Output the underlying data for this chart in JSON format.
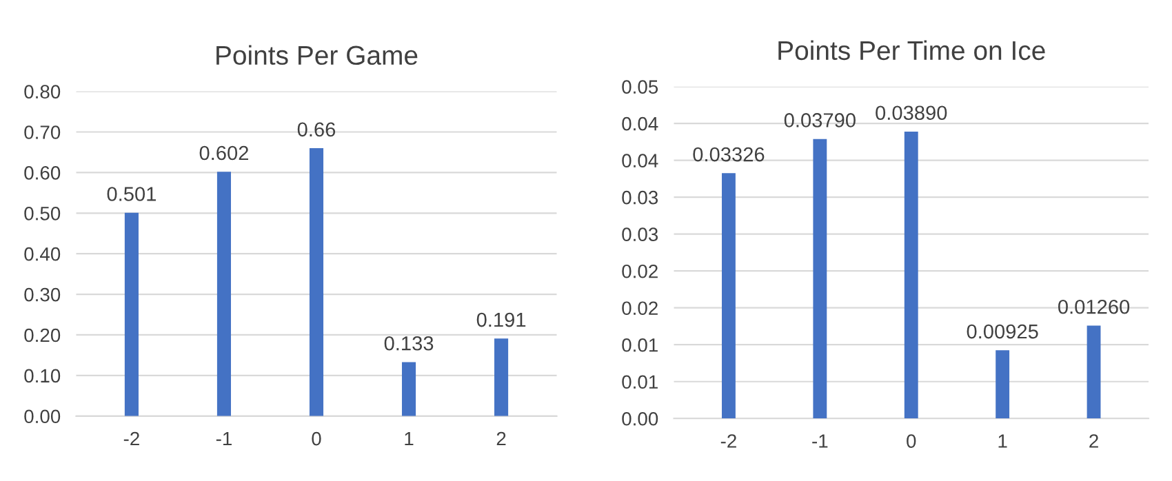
{
  "chart_data": [
    {
      "type": "bar",
      "title": "Points Per Game",
      "categories": [
        "-2",
        "-1",
        "0",
        "1",
        "2"
      ],
      "values": [
        0.501,
        0.602,
        0.66,
        0.133,
        0.191
      ],
      "color": "#4472c4",
      "data_labels": true,
      "value_labels": [
        "0.501",
        "0.602",
        "0.66",
        "0.133",
        "0.191"
      ],
      "ylim": [
        0,
        0.8
      ],
      "yticks": [
        {
          "value": 0,
          "label": "0.00"
        },
        {
          "value": 0.1,
          "label": "0.10"
        },
        {
          "value": 0.2,
          "label": "0.20"
        },
        {
          "value": 0.3,
          "label": "0.30"
        },
        {
          "value": 0.4,
          "label": "0.40"
        },
        {
          "value": 0.5,
          "label": "0.50"
        },
        {
          "value": 0.6,
          "label": "0.60"
        },
        {
          "value": 0.7,
          "label": "0.70"
        },
        {
          "value": 0.8,
          "label": "0.80"
        }
      ],
      "grid": "y",
      "legend": false
    },
    {
      "type": "bar",
      "title": "Points Per Time on Ice",
      "categories": [
        "-2",
        "-1",
        "0",
        "1",
        "2"
      ],
      "values": [
        0.03326,
        0.0379,
        0.0389,
        0.00925,
        0.0126
      ],
      "color": "#4472c4",
      "data_labels": true,
      "value_labels": [
        "0.03326",
        "0.03790",
        "0.03890",
        "0.00925",
        "0.01260"
      ],
      "ylim": [
        0,
        0.045
      ],
      "yticks": [
        {
          "value": 0,
          "label": "0.00"
        },
        {
          "value": 0.005,
          "label": "0.01"
        },
        {
          "value": 0.01,
          "label": "0.01"
        },
        {
          "value": 0.015,
          "label": "0.02"
        },
        {
          "value": 0.02,
          "label": "0.02"
        },
        {
          "value": 0.025,
          "label": "0.03"
        },
        {
          "value": 0.03,
          "label": "0.03"
        },
        {
          "value": 0.035,
          "label": "0.04"
        },
        {
          "value": 0.04,
          "label": "0.04"
        },
        {
          "value": 0.045,
          "label": "0.05"
        }
      ],
      "grid": "y",
      "legend": false
    }
  ]
}
